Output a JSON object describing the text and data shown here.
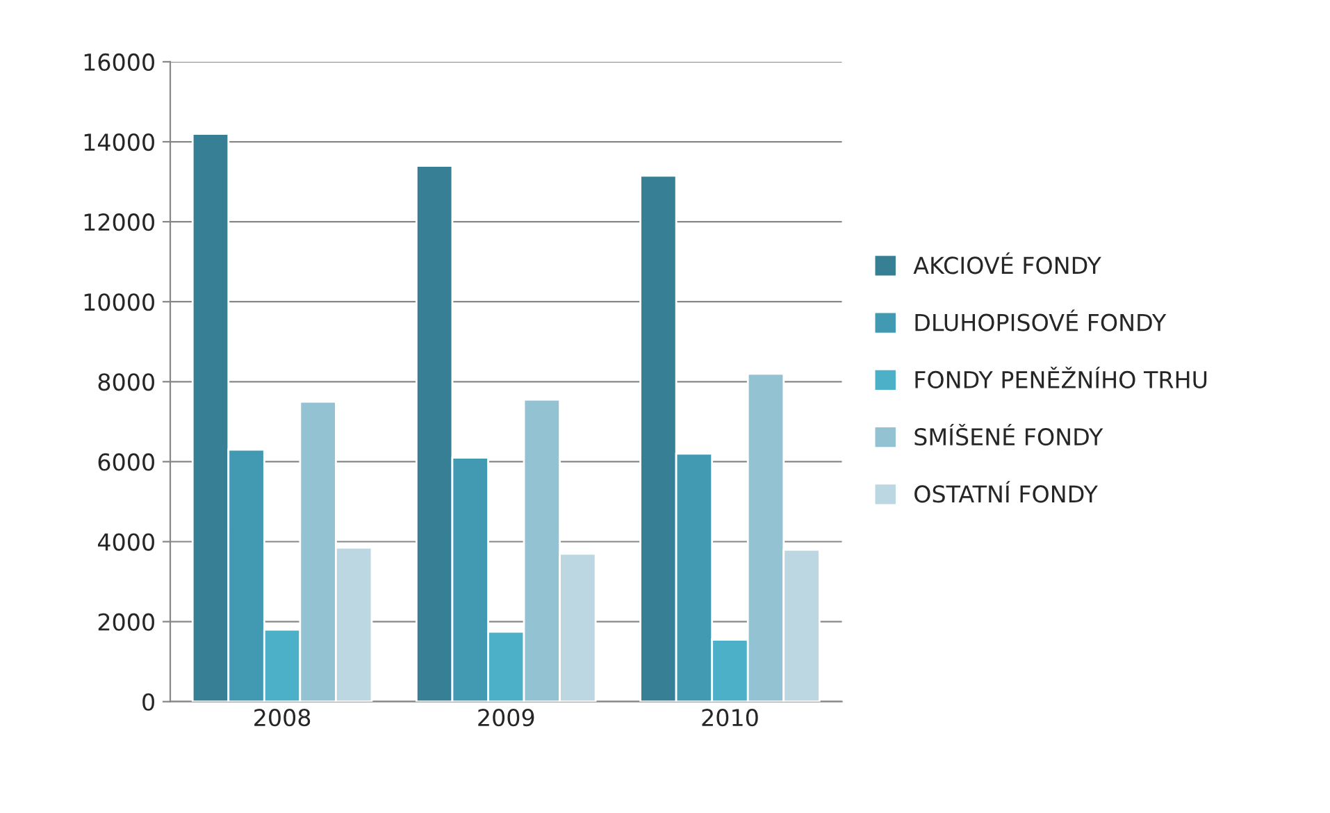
{
  "chart_data": {
    "type": "bar",
    "categories": [
      "2008",
      "2009",
      "2010"
    ],
    "series": [
      {
        "name": "AKCIOVÉ FONDY",
        "color": "#367f94",
        "values": [
          14200,
          13400,
          13150
        ]
      },
      {
        "name": "DLUHOPISOVÉ FONDY",
        "color": "#4199b2",
        "values": [
          6300,
          6100,
          6200
        ]
      },
      {
        "name": "FONDY PENĚŽNÍHO TRHU",
        "color": "#4bb0c8",
        "values": [
          1800,
          1750,
          1550
        ]
      },
      {
        "name": "SMÍŠENÉ FONDY",
        "color": "#93c3d3",
        "values": [
          7500,
          7550,
          8200
        ]
      },
      {
        "name": "OSTATNÍ FONDY",
        "color": "#bcd7e2",
        "values": [
          3850,
          3700,
          3800
        ]
      }
    ],
    "ylim": [
      0,
      16000
    ],
    "yticks": [
      0,
      2000,
      4000,
      6000,
      8000,
      10000,
      12000,
      14000,
      16000
    ],
    "grid": "y",
    "legend": "right"
  }
}
